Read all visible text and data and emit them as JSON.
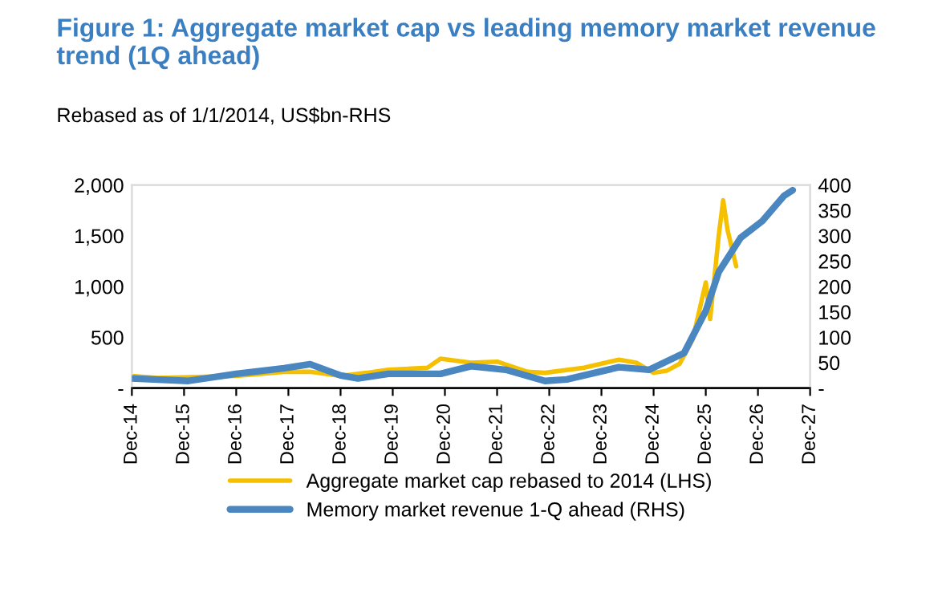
{
  "chart_data": {
    "type": "line",
    "title": "Figure 1: Aggregate market cap vs leading memory market revenue trend (1Q ahead)",
    "subtitle": "Rebased as of 1/1/2014, US$bn-RHS",
    "series": [
      {
        "name": "Aggregate market cap rebased to 2014 (LHS)",
        "color": "#f5c000",
        "axis": "y",
        "x": [
          "2014-12",
          "2015-06",
          "2016-12",
          "2017-11",
          "2018-05",
          "2018-12",
          "2019-06",
          "2019-11",
          "2020-08",
          "2020-11",
          "2021-06",
          "2021-12",
          "2022-07",
          "2022-11",
          "2023-08",
          "2024-04",
          "2024-08",
          "2024-12",
          "2025-03",
          "2025-06",
          "2025-09",
          "2025-12",
          "2026-01",
          "2026-03",
          "2026-04",
          "2026-05",
          "2026-07"
        ],
        "values": [
          120,
          100,
          120,
          160,
          160,
          120,
          150,
          180,
          200,
          290,
          250,
          260,
          160,
          150,
          200,
          280,
          250,
          150,
          170,
          240,
          480,
          1040,
          680,
          1510,
          1850,
          1560,
          1200
        ]
      },
      {
        "name": "Memory market revenue 1-Q ahead (RHS)",
        "color": "#4a86c0",
        "axis": "y2",
        "x": [
          "2014-12",
          "2016-01",
          "2016-12",
          "2017-11",
          "2018-05",
          "2018-12",
          "2019-04",
          "2019-11",
          "2020-11",
          "2021-06",
          "2022-02",
          "2022-11",
          "2023-04",
          "2024-04",
          "2024-11",
          "2025-07",
          "2025-12",
          "2026-03",
          "2026-08",
          "2027-01",
          "2027-06",
          "2027-08"
        ],
        "values": [
          19,
          14,
          28,
          39,
          47,
          25,
          19,
          28,
          28,
          43,
          36,
          14,
          17,
          41,
          36,
          69,
          152,
          229,
          296,
          329,
          379,
          390
        ]
      }
    ],
    "xlim": [
      "2014-12",
      "2027-12"
    ],
    "xticks": [
      {
        "value": "2014-12",
        "label": "Dec-14"
      },
      {
        "value": "2015-12",
        "label": "Dec-15"
      },
      {
        "value": "2016-12",
        "label": "Dec-16"
      },
      {
        "value": "2017-12",
        "label": "Dec-17"
      },
      {
        "value": "2018-12",
        "label": "Dec-18"
      },
      {
        "value": "2019-12",
        "label": "Dec-19"
      },
      {
        "value": "2020-12",
        "label": "Dec-20"
      },
      {
        "value": "2021-12",
        "label": "Dec-21"
      },
      {
        "value": "2022-12",
        "label": "Dec-22"
      },
      {
        "value": "2023-12",
        "label": "Dec-23"
      },
      {
        "value": "2024-12",
        "label": "Dec-24"
      },
      {
        "value": "2025-12",
        "label": "Dec-25"
      },
      {
        "value": "2026-12",
        "label": "Dec-26"
      },
      {
        "value": "2027-12",
        "label": "Dec-27"
      }
    ],
    "ylim": [
      0,
      2000
    ],
    "yticks": [
      {
        "value": 0,
        "label": "-"
      },
      {
        "value": 500,
        "label": "500"
      },
      {
        "value": 1000,
        "label": "1,000"
      },
      {
        "value": 1500,
        "label": "1,500"
      },
      {
        "value": 2000,
        "label": "2,000"
      }
    ],
    "y2lim": [
      0,
      400
    ],
    "y2ticks": [
      {
        "value": 0,
        "label": "-"
      },
      50,
      100,
      150,
      200,
      250,
      300,
      350,
      400
    ],
    "legend": "bottom",
    "grid": false,
    "marker": "none",
    "line_style": "solid"
  }
}
